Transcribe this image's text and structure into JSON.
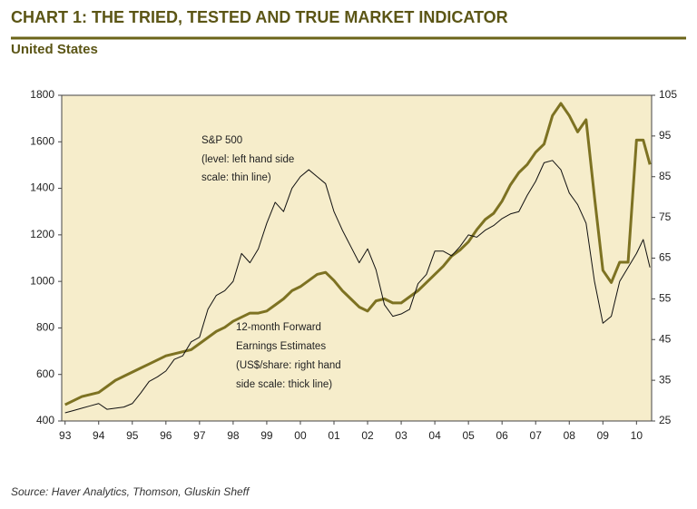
{
  "chart_data": {
    "type": "line",
    "title": "CHART 1: THE TRIED, TESTED AND TRUE MARKET INDICATOR",
    "subtitle": "United States",
    "source": "Source: Haver Analytics, Thomson, Gluskin Sheff",
    "annotations": [
      [
        "S&P 500",
        "(level: left hand side",
        "scale: thin line)"
      ],
      [
        "12-month Forward",
        "Earnings Estimates",
        "(US$/share: right hand",
        "side scale: thick line)"
      ]
    ],
    "x": [
      1993,
      1993.25,
      1993.5,
      1993.75,
      1994,
      1994.25,
      1994.5,
      1994.75,
      1995,
      1995.25,
      1995.5,
      1995.75,
      1996,
      1996.25,
      1996.5,
      1996.75,
      1997,
      1997.25,
      1997.5,
      1997.75,
      1998,
      1998.25,
      1998.5,
      1998.75,
      1999,
      1999.25,
      1999.5,
      1999.75,
      2000,
      2000.25,
      2000.5,
      2000.75,
      2001,
      2001.25,
      2001.5,
      2001.75,
      2002,
      2002.25,
      2002.5,
      2002.75,
      2003,
      2003.25,
      2003.5,
      2003.75,
      2004,
      2004.25,
      2004.5,
      2004.75,
      2005,
      2005.25,
      2005.5,
      2005.75,
      2006,
      2006.25,
      2006.5,
      2006.75,
      2007,
      2007.25,
      2007.5,
      2007.75,
      2008,
      2008.25,
      2008.5,
      2008.75,
      2009,
      2009.25,
      2009.5,
      2009.75,
      2010,
      2010.2,
      2010.4
    ],
    "series": [
      {
        "name": "S&P 500",
        "color": "#111111",
        "width": 1,
        "values": [
          435,
          445,
          455,
          465,
          475,
          450,
          455,
          460,
          475,
          520,
          570,
          590,
          615,
          665,
          680,
          740,
          760,
          880,
          940,
          960,
          1000,
          1120,
          1080,
          1140,
          1250,
          1340,
          1300,
          1400,
          1450,
          1480,
          1450,
          1420,
          1300,
          1220,
          1150,
          1080,
          1140,
          1050,
          900,
          850,
          860,
          880,
          990,
          1030,
          1130,
          1130,
          1110,
          1150,
          1200,
          1190,
          1220,
          1240,
          1270,
          1290,
          1300,
          1370,
          1430,
          1510,
          1520,
          1480,
          1380,
          1330,
          1250,
          1000,
          820,
          850,
          1000,
          1060,
          1120,
          1180,
          1060
        ]
      },
      {
        "name": "12-month Forward Earnings Estimates",
        "color": "#7d7222",
        "width": 3,
        "axis": "y2",
        "values": [
          29,
          30,
          31,
          31.5,
          32,
          33.5,
          35,
          36,
          37,
          38,
          39,
          40,
          41,
          41.5,
          42,
          42.5,
          44,
          45.5,
          47,
          48,
          49.5,
          50.5,
          51.5,
          51.5,
          52,
          53.5,
          55,
          57,
          58,
          59.5,
          61,
          61.5,
          59.5,
          57,
          55,
          53,
          52,
          54.5,
          55,
          54,
          54,
          55.5,
          57,
          59,
          61,
          63,
          65.5,
          67,
          69,
          72,
          74.5,
          76,
          79,
          83,
          86,
          88,
          91,
          93,
          100,
          103,
          100,
          96,
          99,
          80,
          62,
          59,
          64,
          64,
          94,
          94,
          88
        ]
      }
    ],
    "xlim": [
      1992.9,
      2010.45
    ],
    "xticks": [
      {
        "value": 1993,
        "label": "93"
      },
      {
        "value": 1994,
        "label": "94"
      },
      {
        "value": 1995,
        "label": "95"
      },
      {
        "value": 1996,
        "label": "96"
      },
      {
        "value": 1997,
        "label": "97"
      },
      {
        "value": 1998,
        "label": "98"
      },
      {
        "value": 1999,
        "label": "99"
      },
      {
        "value": 2000,
        "label": "00"
      },
      {
        "value": 2001,
        "label": "01"
      },
      {
        "value": 2002,
        "label": "02"
      },
      {
        "value": 2003,
        "label": "03"
      },
      {
        "value": 2004,
        "label": "04"
      },
      {
        "value": 2005,
        "label": "05"
      },
      {
        "value": 2006,
        "label": "06"
      },
      {
        "value": 2007,
        "label": "07"
      },
      {
        "value": 2008,
        "label": "08"
      },
      {
        "value": 2009,
        "label": "09"
      },
      {
        "value": 2010,
        "label": "10"
      }
    ],
    "ylim": [
      400,
      1800
    ],
    "yticks": [
      400,
      600,
      800,
      1000,
      1200,
      1400,
      1600,
      1800
    ],
    "y2lim": [
      25,
      105
    ],
    "y2ticks": [
      25,
      35,
      45,
      55,
      65,
      75,
      85,
      95,
      105
    ],
    "background": "#f6edcb"
  }
}
